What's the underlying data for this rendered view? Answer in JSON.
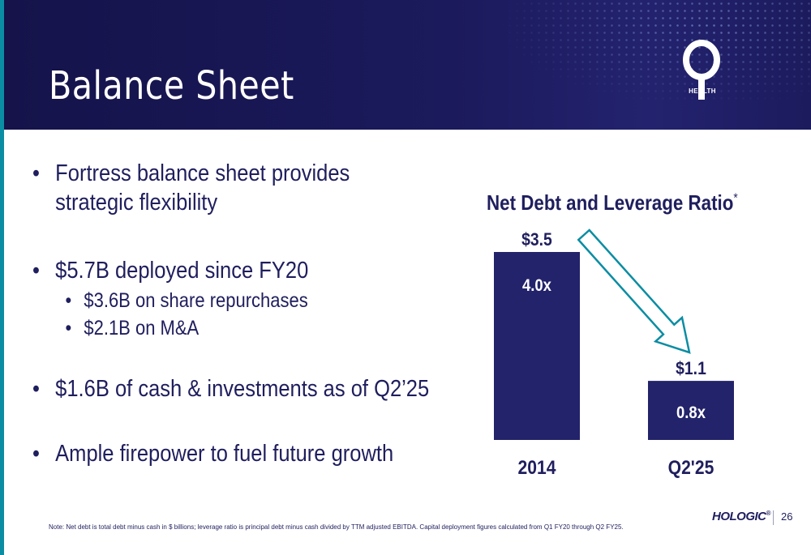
{
  "header": {
    "title": "Balance Sheet",
    "logo_text": "HEALTH",
    "background": "#1b1a5c"
  },
  "bullets": [
    {
      "lines": [
        "Fortress balance sheet provides",
        "strategic flexibility"
      ],
      "sub": []
    },
    {
      "lines": [
        "$5.7B deployed since FY20"
      ],
      "sub": [
        "$3.6B on share repurchases",
        "$2.1B on M&A"
      ]
    },
    {
      "lines": [
        "$1.6B of cash & investments as of Q2’25"
      ],
      "sub": []
    },
    {
      "lines": [
        "Ample firepower to fuel future growth"
      ],
      "sub": []
    }
  ],
  "chart_data": {
    "type": "bar",
    "title": "Net Debt and Leverage Ratio",
    "title_marker": "*",
    "categories": [
      "2014",
      "Q2'25"
    ],
    "series": [
      {
        "values": [
          3.5,
          1.1
        ],
        "value_labels": [
          "$3.5",
          "$1.1"
        ]
      },
      {
        "values": [
          4.0,
          0.8
        ],
        "value_labels": [
          "4.0x",
          "0.8x"
        ]
      }
    ],
    "bar_color": "#23236b",
    "arrow_color": "#0b8da3",
    "ylim": [
      0,
      3.5
    ],
    "grid": false,
    "legend": "none"
  },
  "footer": {
    "note": "Note: Net debt is total debt minus cash in $ billions; leverage ratio is principal debt minus cash divided by TTM adjusted EBITDA. Capital deployment figures calculated from Q1 FY20 through Q2 FY25.",
    "brand": "HOLOGIC",
    "brand_mark": "®",
    "page_number": "26"
  },
  "colors": {
    "navy": "#1f1e5e",
    "teal_accent": "#0b8da3"
  }
}
